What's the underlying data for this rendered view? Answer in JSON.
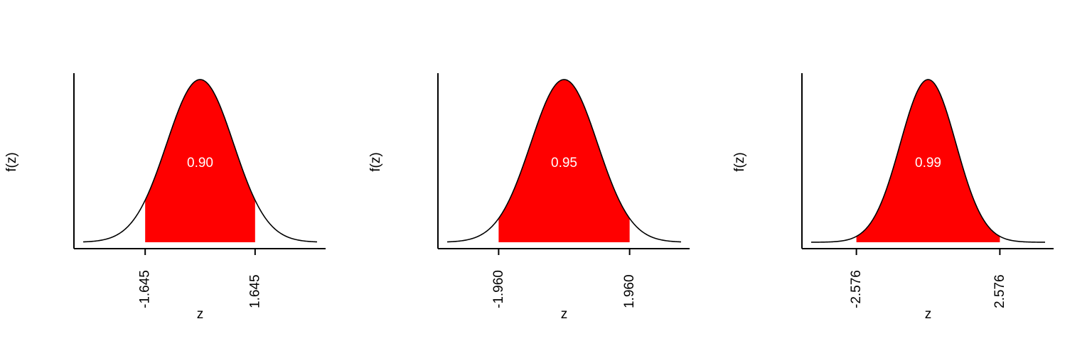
{
  "colors": {
    "fill": "#ff0000",
    "curve": "#000000",
    "axis": "#000000",
    "area_label": "#ffffff"
  },
  "chart_data": [
    {
      "type": "area",
      "curve": "standard normal density",
      "xlabel": "z",
      "ylabel": "f(z)",
      "xlim": [
        -3.5,
        3.5
      ],
      "shaded_interval": [
        -1.645,
        1.645
      ],
      "xticks": [
        -1.645,
        1.645
      ],
      "xtick_labels": [
        "-1.645",
        "1.645"
      ],
      "area_label": "0.90",
      "grid": false
    },
    {
      "type": "area",
      "curve": "standard normal density",
      "xlabel": "z",
      "ylabel": "f(z)",
      "xlim": [
        -3.5,
        3.5
      ],
      "shaded_interval": [
        -1.96,
        1.96
      ],
      "xticks": [
        -1.96,
        1.96
      ],
      "xtick_labels": [
        "-1.960",
        "1.960"
      ],
      "area_label": "0.95",
      "grid": false
    },
    {
      "type": "area",
      "curve": "standard normal density",
      "xlabel": "z",
      "ylabel": "f(z)",
      "xlim": [
        -4.2,
        4.2
      ],
      "shaded_interval": [
        -2.576,
        2.576
      ],
      "xticks": [
        -2.576,
        2.576
      ],
      "xtick_labels": [
        "-2.576",
        "2.576"
      ],
      "area_label": "0.99",
      "grid": false
    }
  ]
}
